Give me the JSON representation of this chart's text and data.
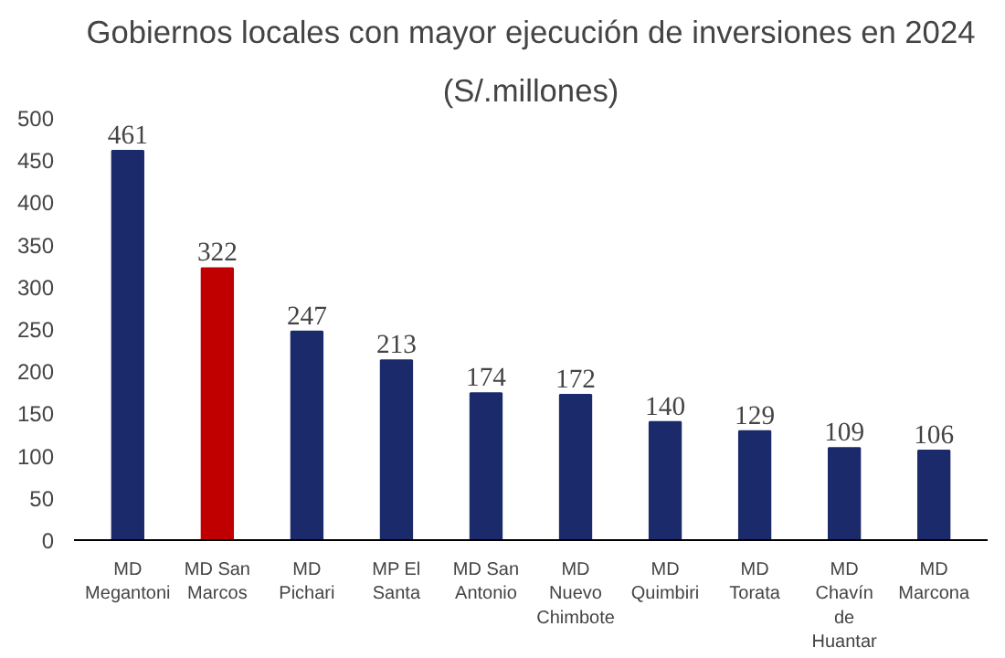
{
  "chart_data": {
    "type": "bar",
    "title": "Gobiernos locales con mayor ejecución de inversiones en 2024",
    "subtitle": "(S/.millones)",
    "categories": [
      "MD Megantoni",
      "MD San Marcos",
      "MD Pichari",
      "MP El Santa",
      "MD San Antonio",
      "MD Nuevo Chimbote",
      "MD Quimbiri",
      "MD Torata",
      "MD Chavín de Huantar",
      "MD Marcona"
    ],
    "values": [
      461,
      322,
      247,
      213,
      174,
      172,
      140,
      129,
      109,
      106
    ],
    "colors": [
      "#1b2a6b",
      "#c00000",
      "#1b2a6b",
      "#1b2a6b",
      "#1b2a6b",
      "#1b2a6b",
      "#1b2a6b",
      "#1b2a6b",
      "#1b2a6b",
      "#1b2a6b"
    ],
    "ylim": [
      0,
      500
    ],
    "yticks": [
      0,
      50,
      100,
      150,
      200,
      250,
      300,
      350,
      400,
      450,
      500
    ],
    "data_labels": true,
    "grid": false
  }
}
